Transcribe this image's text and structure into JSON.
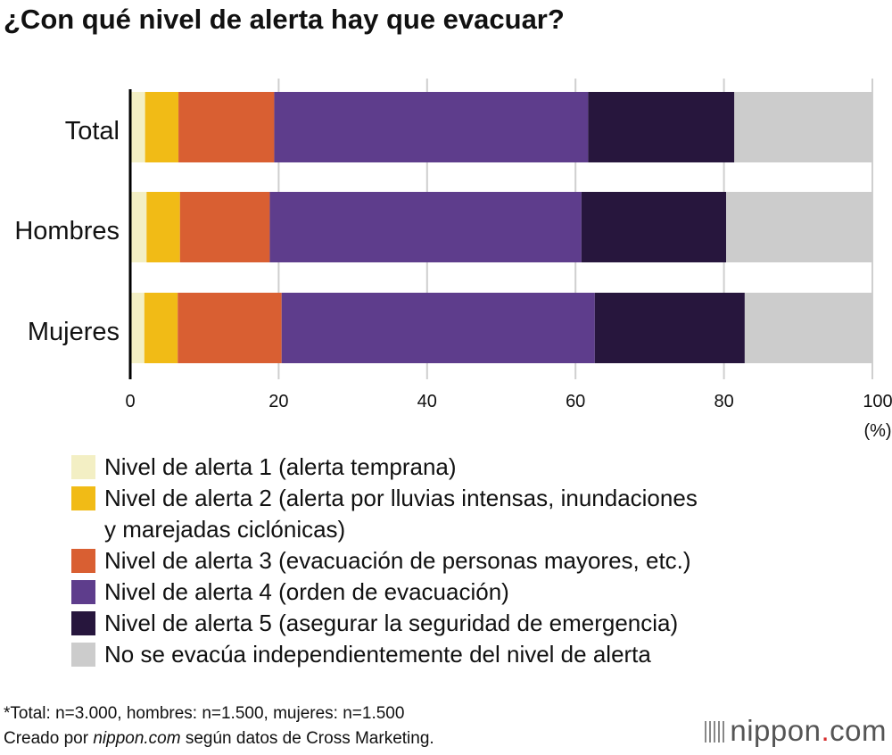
{
  "chart_data": {
    "type": "bar",
    "orientation": "horizontal",
    "stacked": true,
    "title": "¿Con qué nivel de alerta hay que evacuar?",
    "categories": [
      "Total",
      "Hombres",
      "Mujeres"
    ],
    "xlim": [
      0,
      100
    ],
    "xticks": [
      "0",
      "20",
      "40",
      "60",
      "80",
      "100"
    ],
    "xunit": "(%)",
    "grid": true,
    "legend_placement": "bottom",
    "series": [
      {
        "name": "Nivel de alerta 1 (alerta temprana)",
        "color": "#f3efc4",
        "values": [
          2.0,
          2.2,
          1.9
        ]
      },
      {
        "name": "Nivel de alerta 2 (alerta por lluvias intensas, inundaciones y marejadas ciclónicas)",
        "color": "#f1bb16",
        "values": [
          4.5,
          4.5,
          4.5
        ]
      },
      {
        "name": "Nivel de alerta 3 (evacuación de personas mayores, etc.)",
        "color": "#d95f32",
        "values": [
          12.9,
          12.1,
          14.0
        ]
      },
      {
        "name": "Nivel de alerta 4 (orden de evacuación)",
        "color": "#5e3d8c",
        "values": [
          42.3,
          42.0,
          42.2
        ]
      },
      {
        "name": "Nivel de alerta 5 (asegurar la seguridad de emergencia)",
        "color": "#27163d",
        "values": [
          19.7,
          19.5,
          20.2
        ]
      },
      {
        "name": "No se evacúa independientemente del nivel de alerta",
        "color": "#cccccc",
        "values": [
          18.6,
          19.7,
          17.2
        ]
      }
    ]
  },
  "legend_lines": [
    [
      "Nivel de alerta 1 (alerta temprana)"
    ],
    [
      "Nivel de alerta 2 (alerta por lluvias intensas, inundaciones",
      "y marejadas ciclónicas)"
    ],
    [
      "Nivel de alerta 3 (evacuación de personas mayores, etc.)"
    ],
    [
      "Nivel de alerta 4 (orden de evacuación)"
    ],
    [
      "Nivel de alerta 5 (asegurar la seguridad de emergencia)"
    ],
    [
      "No se evacúa independientemente del nivel de alerta"
    ]
  ],
  "footnote": {
    "line1": "*Total: n=3.000, hombres: n=1.500, mujeres: n=1.500",
    "line2_prefix": "Creado por ",
    "line2_italic": "nippon.com",
    "line2_suffix": " según datos de Cross Marketing."
  },
  "logo": {
    "text_a": "nippon",
    "dot": ".",
    "text_b": "com"
  }
}
